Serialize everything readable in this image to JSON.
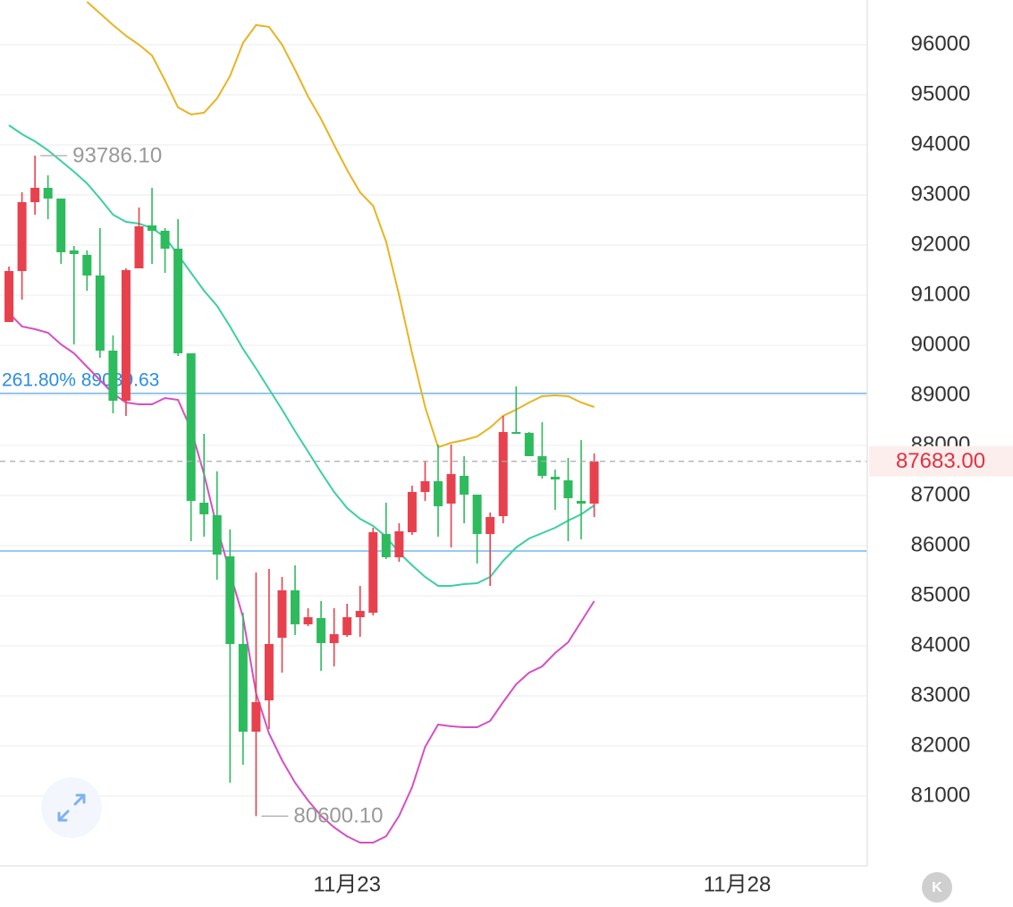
{
  "chart_data": {
    "type": "candlestick",
    "ylim": [
      79607,
      96893
    ],
    "yticks": [
      81000,
      82000,
      83000,
      84000,
      85000,
      86000,
      87000,
      88000,
      89000,
      90000,
      91000,
      92000,
      93000,
      94000,
      95000,
      96000
    ],
    "xlim": [
      -0.69,
      66
    ],
    "xticks": [
      {
        "value": 26,
        "label": "11月23"
      },
      {
        "value": 56,
        "label": "11月28"
      }
    ],
    "grid": true,
    "up_color": "#e8414e",
    "down_color": "#2dbb5d",
    "open": [
      90464,
      91482,
      92857,
      93143,
      92929,
      91893,
      91804,
      91393,
      89893,
      88893,
      91536,
      92393,
      92286,
      91929,
      89839,
      86857,
      86607,
      85786,
      84036,
      82286,
      82911,
      84161,
      85107,
      84429,
      84554,
      84054,
      84214,
      84571,
      84661,
      86232,
      85768,
      86268,
      87071,
      87286,
      86839,
      87393,
      87018,
      86232,
      86589,
      88268,
      88250,
      87786,
      87375,
      87304,
      86893,
      86839
    ],
    "high": [
      91571,
      93054,
      93786.1,
      93393,
      92929,
      91982,
      91893,
      92339,
      90196,
      91536,
      92750,
      93143,
      92339,
      92518,
      89839,
      88232,
      87482,
      86321,
      84661,
      85464,
      85536,
      85375,
      85607,
      84750,
      84893,
      84750,
      84839,
      85196,
      86357,
      86857,
      86446,
      87196,
      87696,
      88018,
      88018,
      87786,
      87018,
      86661,
      88589,
      89179,
      88268,
      88464,
      87518,
      87750,
      88107,
      87839
    ],
    "low": [
      90464,
      90911,
      92607,
      92518,
      91625,
      90018,
      91089,
      89750,
      88643,
      88589,
      91536,
      91625,
      91446,
      89786,
      86089,
      86179,
      85321,
      81268,
      81625,
      80600.1,
      82339,
      83464,
      84214,
      84393,
      83500,
      83589,
      84179,
      84179,
      84607,
      85732,
      85679,
      86214,
      86893,
      86179,
      85964,
      86446,
      85643,
      85196,
      86446,
      88232,
      87786,
      87339,
      86714,
      86089,
      86125,
      86571
    ],
    "close": [
      91482,
      92857,
      93143,
      92929,
      91857,
      91821,
      91393,
      89893,
      88893,
      91500,
      92375,
      92286,
      91929,
      89839,
      86893,
      86625,
      85821,
      84036,
      82286,
      82875,
      84036,
      85107,
      84429,
      84571,
      84054,
      84232,
      84571,
      84696,
      86268,
      85768,
      86286,
      87071,
      87286,
      86786,
      87429,
      87018,
      86232,
      86571,
      88268,
      88232,
      87786,
      87393,
      87321,
      86946,
      86839,
      87683
    ],
    "lines": [
      {
        "color": "#e8b422",
        "values": [
          null,
          null,
          null,
          null,
          null,
          null,
          96857,
          96625,
          96393,
          96179,
          96000,
          95786,
          95286,
          94750,
          94607,
          94643,
          94929,
          95375,
          96036,
          96393,
          96357,
          96000,
          95500,
          94964,
          94518,
          94000,
          93500,
          93054,
          92786,
          92071,
          91000,
          89839,
          88768,
          87964,
          88054,
          88107,
          88179,
          88357,
          88589,
          88714,
          88857,
          88982,
          89000,
          88982,
          88857,
          88768
        ]
      },
      {
        "color": "#3ccfa3",
        "values": [
          94393,
          94214,
          94071,
          93893,
          93679,
          93464,
          93232,
          92929,
          92607,
          92464,
          92429,
          92339,
          92161,
          91804,
          91446,
          91089,
          90786,
          90375,
          89929,
          89536,
          89125,
          88714,
          88286,
          87875,
          87464,
          87071,
          86750,
          86536,
          86393,
          86179,
          85857,
          85607,
          85375,
          85196,
          85196,
          85232,
          85250,
          85375,
          85696,
          85964,
          86143,
          86250,
          86357,
          86500,
          86625,
          86804
        ]
      },
      {
        "color": "#d64fc2",
        "values": [
          90643,
          90375,
          90321,
          90250,
          90018,
          89839,
          89571,
          89304,
          89036,
          88857,
          88821,
          88821,
          88946,
          88911,
          88321,
          87429,
          86357,
          85464,
          84571,
          83054,
          82250,
          81714,
          81268,
          80911,
          80607,
          80375,
          80196,
          80071,
          80071,
          80196,
          80607,
          81179,
          81982,
          82429,
          82393,
          82375,
          82375,
          82500,
          82875,
          83232,
          83464,
          83589,
          83857,
          84071,
          84482,
          84893
        ]
      }
    ],
    "fib_lines": [
      {
        "value": 89039.63,
        "label": "261.80% 89039.63",
        "color": "#5aaae8"
      },
      {
        "value": 85893,
        "color": "#5aaae8"
      }
    ],
    "annotations": [
      {
        "index": 2,
        "value": 93786.1,
        "label": "93786.10"
      },
      {
        "index": 19,
        "value": 80600.1,
        "label": "80600.10"
      }
    ],
    "last_price": {
      "value": 87683,
      "label": "87683.00"
    },
    "logo": "K"
  }
}
